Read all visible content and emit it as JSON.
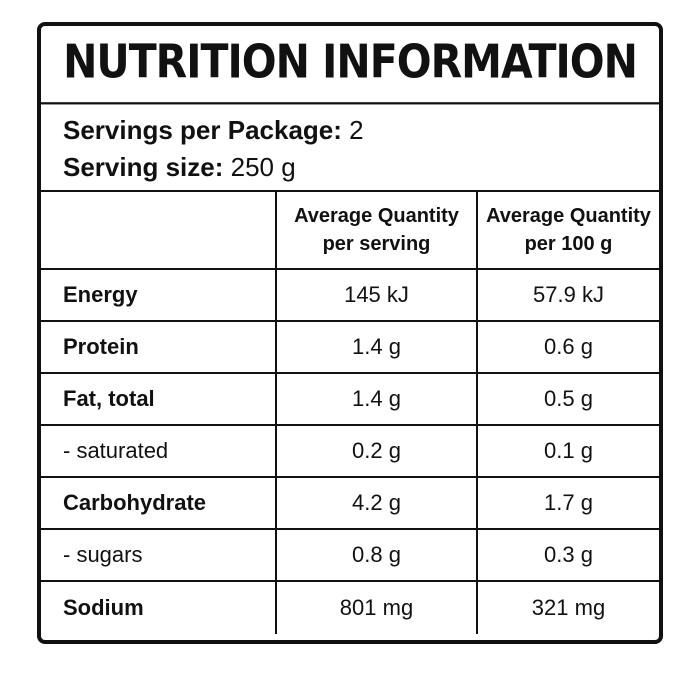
{
  "title": "NUTRITION INFORMATION",
  "servings": {
    "per_package_label": "Servings per Package:",
    "per_package_value": "2",
    "size_label": "Serving size:",
    "size_value": "250 g"
  },
  "table": {
    "headers": [
      "",
      "Average Quantity per serving",
      "Average Quantity per 100 g"
    ],
    "rows": [
      {
        "nutrient": "Energy",
        "per_serving": "145 kJ",
        "per_100g": "57.9 kJ"
      },
      {
        "nutrient": "Protein",
        "per_serving": "1.4 g",
        "per_100g": "0.6 g"
      },
      {
        "nutrient": "Fat, total",
        "per_serving": "1.4 g",
        "per_100g": "0.5 g"
      },
      {
        "nutrient": " - saturated",
        "per_serving": "0.2 g",
        "per_100g": "0.1 g"
      },
      {
        "nutrient": "Carbohydrate",
        "per_serving": "4.2 g",
        "per_100g": "1.7 g"
      },
      {
        "nutrient": " - sugars",
        "per_serving": "0.8 g",
        "per_100g": "0.3 g"
      },
      {
        "nutrient": "Sodium",
        "per_serving": "801 mg",
        "per_100g": "321 mg"
      }
    ]
  }
}
